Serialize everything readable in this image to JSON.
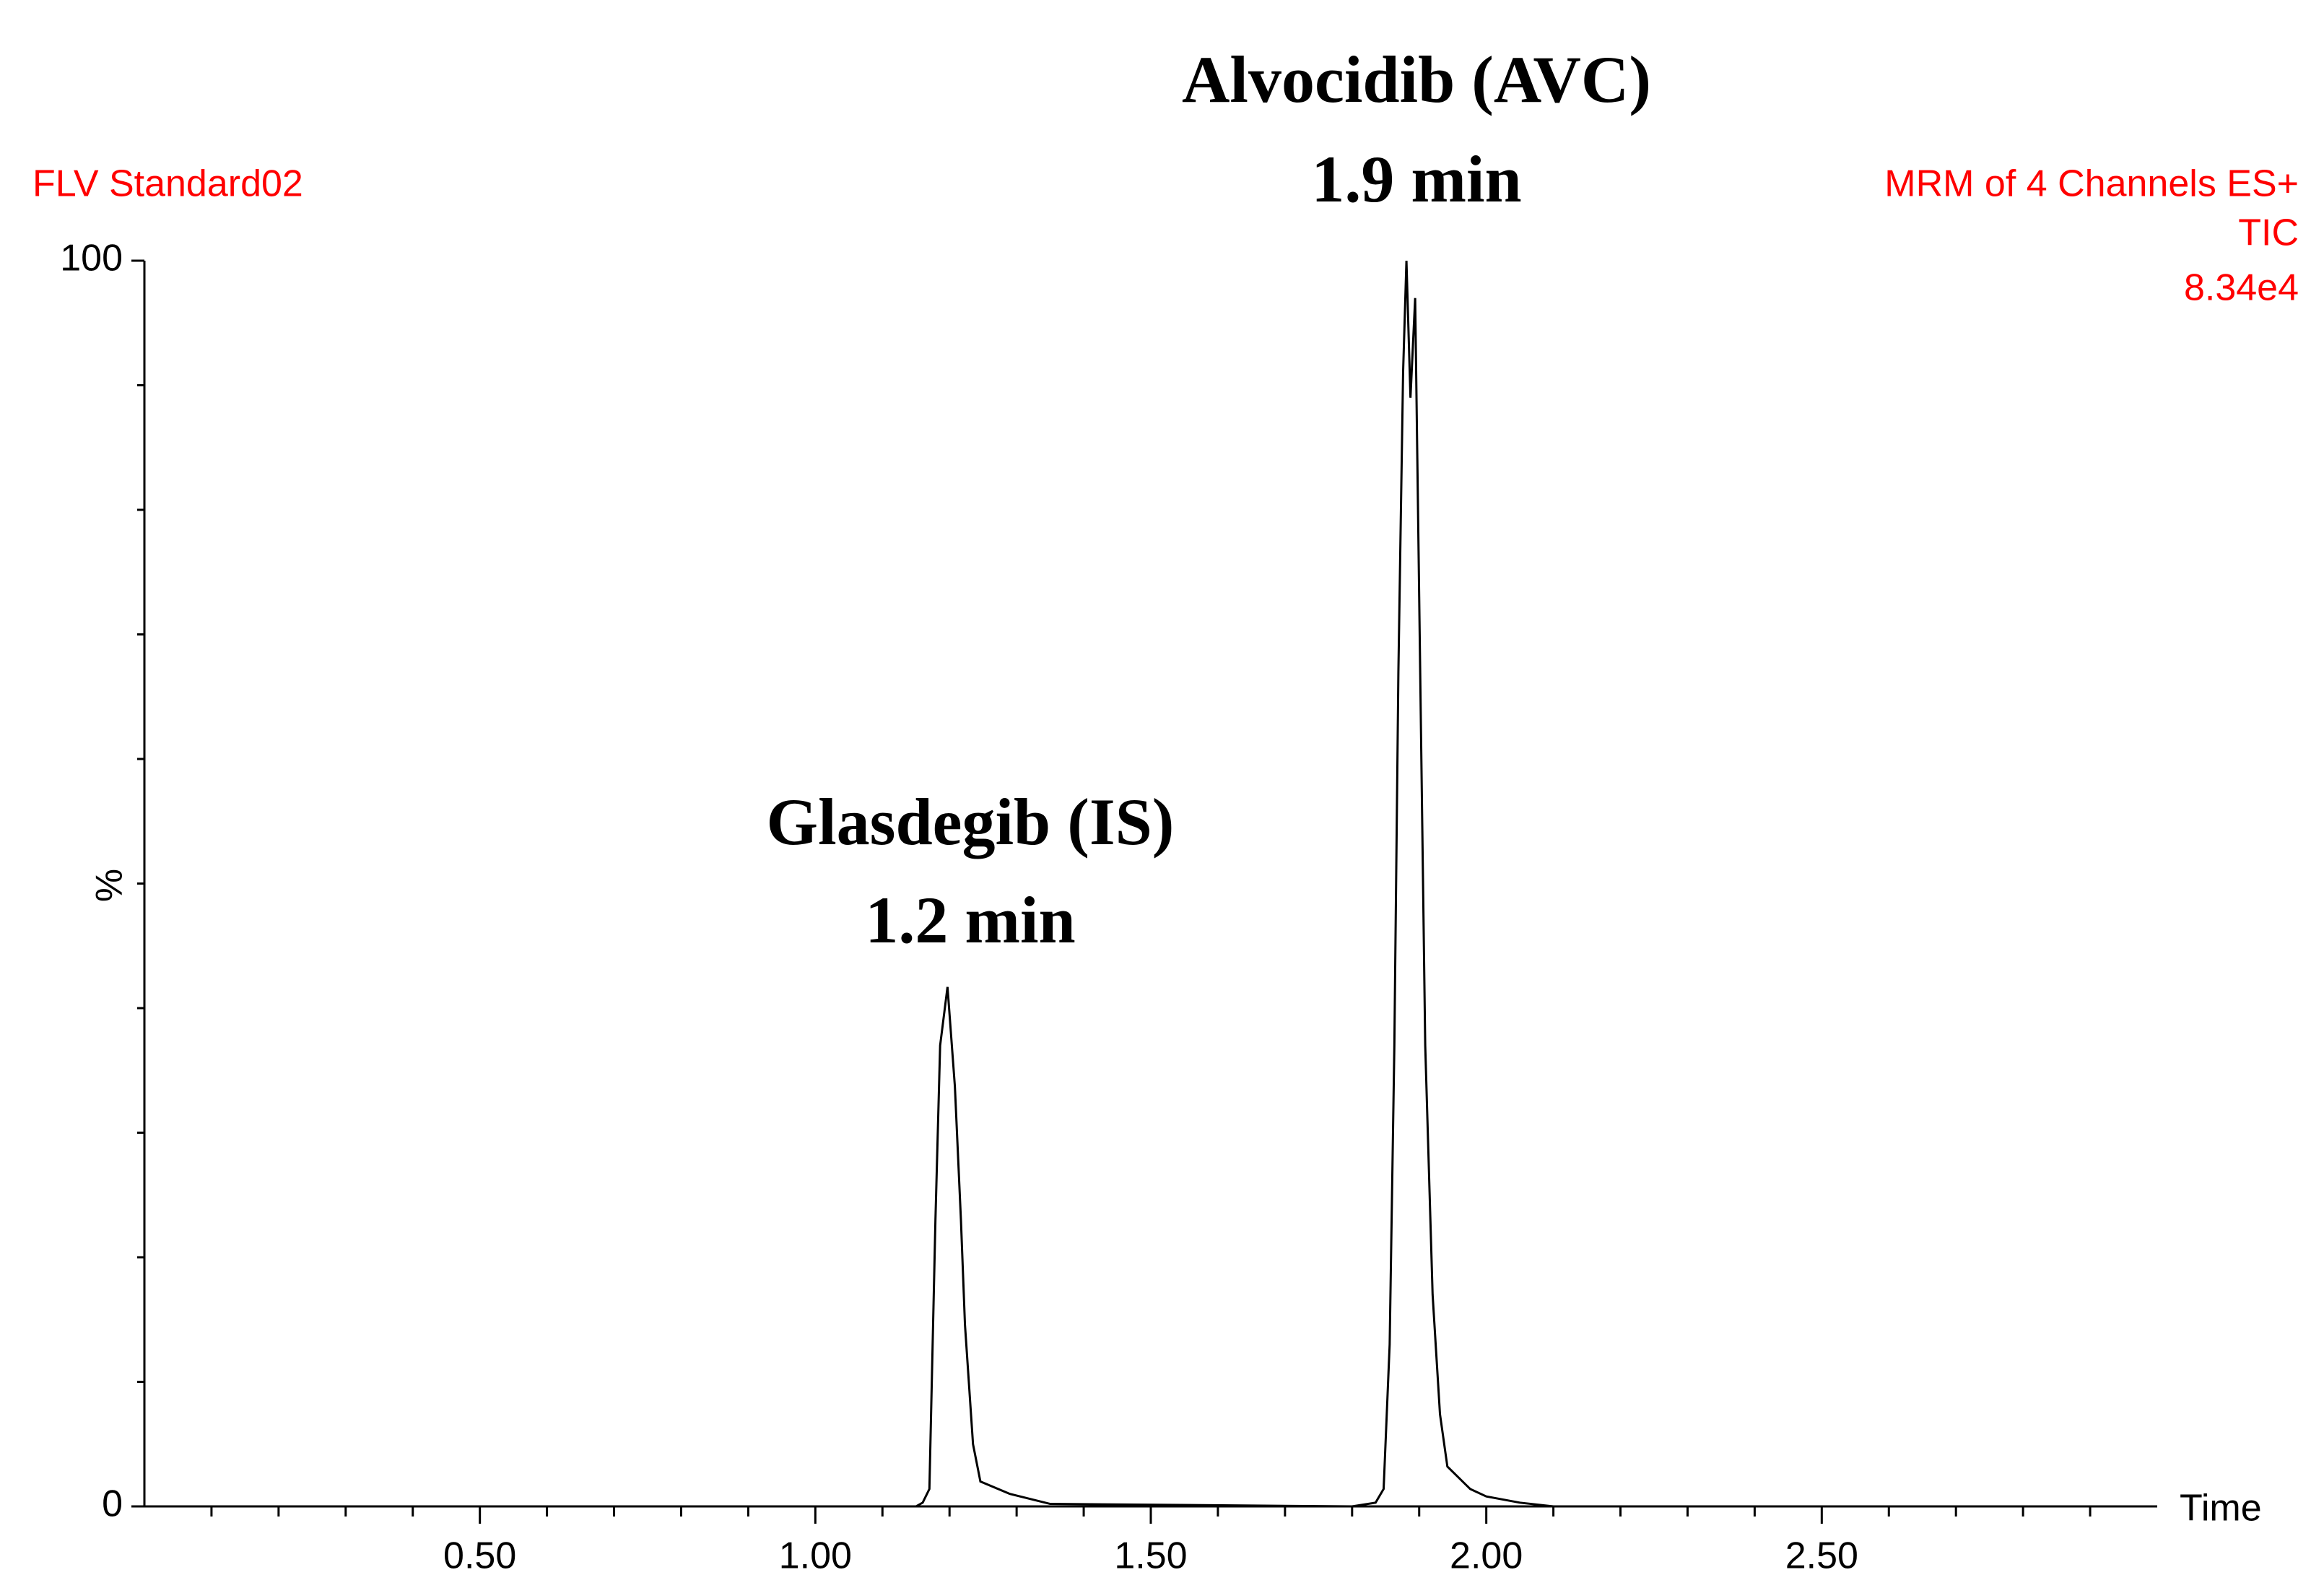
{
  "chart_data": {
    "type": "line",
    "title": "FLV Standard02",
    "info": [
      "MRM of 4 Channels ES+",
      "TIC",
      "8.34e4"
    ],
    "annotations": [
      "Alvocidib (AVC)",
      "1.9 min",
      "Glasdegib (IS)",
      "1.2 min"
    ],
    "xlabel": "Time",
    "ylabel": "%",
    "x": [
      0,
      1.1,
      1.15,
      1.16,
      1.17,
      1.179,
      1.186,
      1.197,
      1.208,
      1.217,
      1.223,
      1.235,
      1.246,
      1.29,
      1.35,
      1.8,
      1.835,
      1.847,
      1.856,
      1.863,
      1.869,
      1.876,
      1.881,
      1.887,
      1.894,
      1.9,
      1.909,
      1.92,
      1.931,
      1.942,
      1.976,
      2.0,
      2.05,
      2.1,
      3.0
    ],
    "series": [
      {
        "name": "TIC",
        "color": "#000000",
        "values": [
          0,
          0,
          0,
          0.3,
          1.4,
          23,
          37,
          41.7,
          33.7,
          23,
          14.6,
          5,
          2,
          1,
          0.2,
          0,
          0.3,
          1.4,
          13,
          37,
          67,
          91,
          100,
          89,
          97,
          73,
          37,
          17,
          7.4,
          3.2,
          1.4,
          0.8,
          0.3,
          0,
          0
        ]
      }
    ],
    "xlim": [
      0,
      3.0
    ],
    "ylim": [
      0,
      100
    ],
    "xticks": [
      {
        "value": 0.5,
        "label": "0.50"
      },
      {
        "value": 1.0,
        "label": "1.00"
      },
      {
        "value": 1.5,
        "label": "1.50"
      },
      {
        "value": 2.0,
        "label": "2.00"
      },
      {
        "value": 2.5,
        "label": "2.50"
      }
    ],
    "xminorticks": [
      0.1,
      0.2,
      0.3,
      0.4,
      0.6,
      0.7,
      0.8,
      0.9,
      1.1,
      1.2,
      1.3,
      1.4,
      1.6,
      1.7,
      1.8,
      1.9,
      2.1,
      2.2,
      2.3,
      2.4,
      2.6,
      2.7,
      2.8,
      2.9
    ],
    "yticks": [
      0,
      100
    ],
    "yminorticks": [
      10,
      20,
      30,
      40,
      50,
      60,
      70,
      80,
      90
    ],
    "grid": false
  }
}
